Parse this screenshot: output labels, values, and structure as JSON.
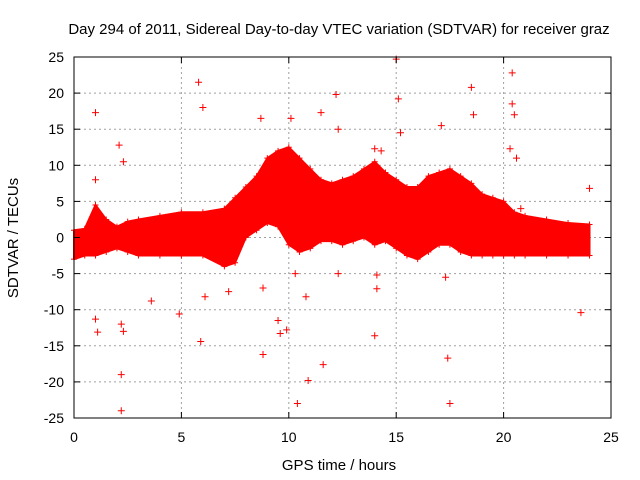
{
  "chart_data": {
    "type": "scatter",
    "title": "Day 294 of 2011, Sidereal Day-to-day VTEC variation (SDTVAR) for receiver graz",
    "xlabel": "GPS time / hours",
    "ylabel": "SDTVAR / TECUs",
    "xlim": [
      0,
      25
    ],
    "ylim": [
      -25,
      25
    ],
    "xticks": [
      0,
      5,
      10,
      15,
      20,
      25
    ],
    "yticks": [
      -25,
      -20,
      -15,
      -10,
      -5,
      0,
      5,
      10,
      15,
      20,
      25
    ],
    "grid": true,
    "marker": "+",
    "color": "#ff0000",
    "band": {
      "description": "dense plus-marker band (envelope of the point cloud)",
      "x": [
        0.0,
        0.5,
        1.0,
        1.5,
        2.0,
        2.5,
        3.0,
        4.0,
        5.0,
        6.0,
        7.0,
        7.5,
        8.0,
        8.5,
        9.0,
        9.5,
        10.0,
        10.5,
        11.0,
        11.5,
        12.0,
        12.5,
        13.0,
        13.5,
        14.0,
        14.5,
        15.0,
        15.5,
        16.0,
        16.5,
        17.0,
        17.5,
        18.0,
        18.5,
        19.0,
        19.5,
        20.0,
        20.5,
        21.0,
        22.0,
        23.0,
        24.0
      ],
      "upper": [
        1.0,
        1.2,
        4.5,
        2.5,
        1.5,
        2.2,
        2.5,
        3.0,
        3.5,
        3.5,
        4.0,
        5.5,
        7.0,
        8.5,
        11.0,
        12.0,
        12.5,
        11.0,
        9.5,
        8.0,
        7.5,
        8.0,
        8.5,
        9.5,
        10.5,
        9.0,
        8.0,
        7.0,
        7.0,
        8.5,
        9.0,
        9.5,
        8.5,
        7.5,
        6.0,
        5.5,
        5.0,
        3.5,
        3.0,
        2.5,
        2.0,
        1.8
      ],
      "lower": [
        -3.0,
        -2.5,
        -2.5,
        -2.0,
        -1.5,
        -2.0,
        -2.5,
        -2.5,
        -2.5,
        -2.5,
        -4.0,
        -3.5,
        0.0,
        1.0,
        2.0,
        1.5,
        -1.0,
        -2.0,
        -1.5,
        -0.5,
        -0.5,
        -1.0,
        -0.5,
        0.0,
        -1.0,
        -0.5,
        -1.5,
        -2.5,
        -3.0,
        -2.0,
        -1.0,
        -1.0,
        -2.0,
        -2.5,
        -2.5,
        -2.5,
        -2.5,
        -2.5,
        -2.5,
        -2.5,
        -2.5,
        -2.5
      ]
    },
    "outliers": {
      "x": [
        1.0,
        1.0,
        1.0,
        1.1,
        2.1,
        2.2,
        2.2,
        2.3,
        2.3,
        2.2,
        3.6,
        4.9,
        5.8,
        5.9,
        6.0,
        6.1,
        7.2,
        8.7,
        8.8,
        8.8,
        9.0,
        9.5,
        9.6,
        9.9,
        10.1,
        10.3,
        10.4,
        10.8,
        10.9,
        11.5,
        11.6,
        12.2,
        12.3,
        12.3,
        14.0,
        14.0,
        14.1,
        14.1,
        14.3,
        15.0,
        15.1,
        15.2,
        17.1,
        17.3,
        17.4,
        17.5,
        18.5,
        18.6,
        20.3,
        20.4,
        20.4,
        20.5,
        20.6,
        20.8,
        23.6,
        24.0
      ],
      "y": [
        17.3,
        8.0,
        -11.3,
        -13.1,
        12.8,
        -19.0,
        -24.0,
        10.5,
        -13.0,
        -12.0,
        -8.8,
        -10.6,
        21.5,
        -14.4,
        18.0,
        -8.2,
        -7.5,
        16.5,
        -7.0,
        -16.2,
        9.5,
        -11.5,
        -13.3,
        -12.8,
        16.5,
        -5.0,
        -23.0,
        -8.2,
        -19.8,
        17.3,
        -17.6,
        19.8,
        15.0,
        -5.0,
        12.3,
        -13.6,
        -7.1,
        -5.2,
        12.0,
        24.7,
        19.2,
        14.5,
        15.5,
        -5.5,
        -16.7,
        -23.0,
        20.8,
        17.0,
        12.3,
        22.8,
        18.5,
        17.0,
        11.0,
        4.0,
        -10.4,
        6.8
      ]
    }
  }
}
